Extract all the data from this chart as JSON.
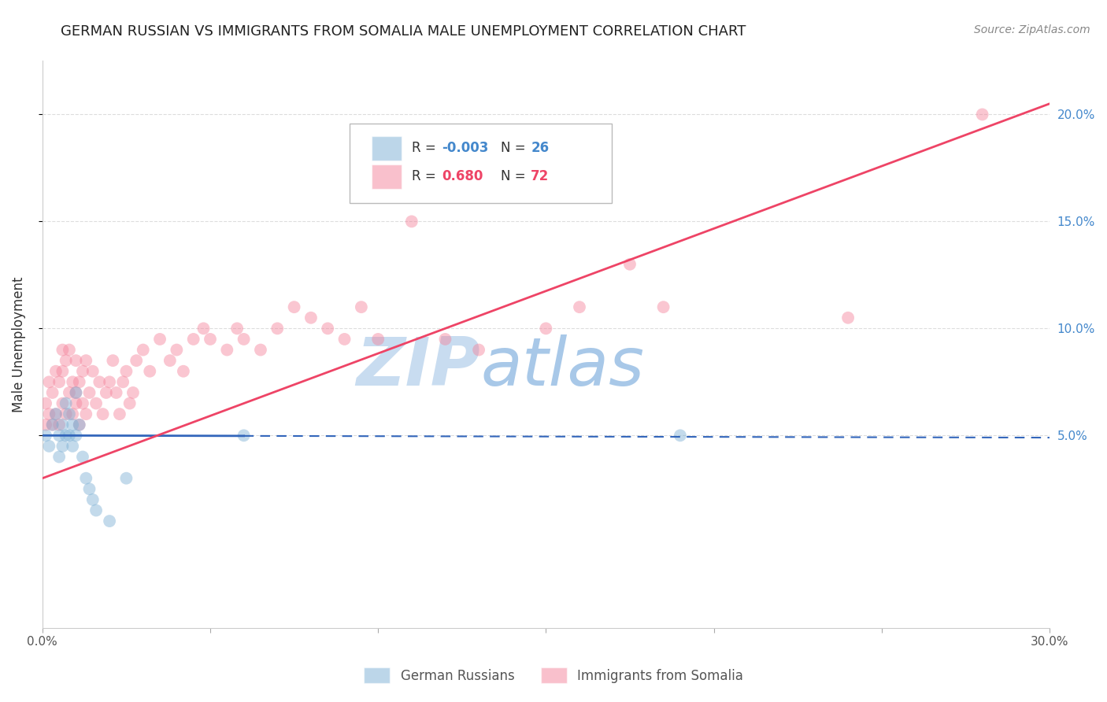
{
  "title": "GERMAN RUSSIAN VS IMMIGRANTS FROM SOMALIA MALE UNEMPLOYMENT CORRELATION CHART",
  "source": "Source: ZipAtlas.com",
  "ylabel": "Male Unemployment",
  "xlim": [
    0.0,
    0.3
  ],
  "ylim": [
    -0.04,
    0.225
  ],
  "right_yticks": [
    0.05,
    0.1,
    0.15,
    0.2
  ],
  "right_yticklabels": [
    "5.0%",
    "10.0%",
    "15.0%",
    "20.0%"
  ],
  "legend_r1": "R = -0.003",
  "legend_n1": "N = 26",
  "legend_r2": "R =  0.680",
  "legend_n2": "N = 72",
  "color_blue": "#7BAFD4",
  "color_pink": "#F4829A",
  "watermark_zip": "ZIP",
  "watermark_atlas": "atlas",
  "watermark_color": "#C8DCF0",
  "title_fontsize": 13,
  "source_fontsize": 10,
  "series1_label": "German Russians",
  "series2_label": "Immigrants from Somalia",
  "blue_scatter_x": [
    0.001,
    0.002,
    0.003,
    0.004,
    0.005,
    0.005,
    0.006,
    0.006,
    0.007,
    0.007,
    0.008,
    0.008,
    0.009,
    0.009,
    0.01,
    0.01,
    0.011,
    0.012,
    0.013,
    0.014,
    0.015,
    0.016,
    0.02,
    0.025,
    0.06,
    0.19
  ],
  "blue_scatter_y": [
    0.05,
    0.045,
    0.055,
    0.06,
    0.05,
    0.04,
    0.055,
    0.045,
    0.05,
    0.065,
    0.05,
    0.06,
    0.055,
    0.045,
    0.05,
    0.07,
    0.055,
    0.04,
    0.03,
    0.025,
    0.02,
    0.015,
    0.01,
    0.03,
    0.05,
    0.05
  ],
  "pink_scatter_x": [
    0.001,
    0.001,
    0.002,
    0.002,
    0.003,
    0.003,
    0.004,
    0.004,
    0.005,
    0.005,
    0.006,
    0.006,
    0.006,
    0.007,
    0.007,
    0.008,
    0.008,
    0.009,
    0.009,
    0.01,
    0.01,
    0.01,
    0.011,
    0.011,
    0.012,
    0.012,
    0.013,
    0.013,
    0.014,
    0.015,
    0.016,
    0.017,
    0.018,
    0.019,
    0.02,
    0.021,
    0.022,
    0.023,
    0.024,
    0.025,
    0.026,
    0.027,
    0.028,
    0.03,
    0.032,
    0.035,
    0.038,
    0.04,
    0.042,
    0.045,
    0.048,
    0.05,
    0.055,
    0.058,
    0.06,
    0.065,
    0.07,
    0.075,
    0.08,
    0.085,
    0.09,
    0.095,
    0.1,
    0.11,
    0.12,
    0.13,
    0.15,
    0.16,
    0.175,
    0.185,
    0.24,
    0.28
  ],
  "pink_scatter_y": [
    0.055,
    0.065,
    0.06,
    0.075,
    0.055,
    0.07,
    0.06,
    0.08,
    0.055,
    0.075,
    0.065,
    0.08,
    0.09,
    0.06,
    0.085,
    0.07,
    0.09,
    0.06,
    0.075,
    0.065,
    0.07,
    0.085,
    0.055,
    0.075,
    0.065,
    0.08,
    0.06,
    0.085,
    0.07,
    0.08,
    0.065,
    0.075,
    0.06,
    0.07,
    0.075,
    0.085,
    0.07,
    0.06,
    0.075,
    0.08,
    0.065,
    0.07,
    0.085,
    0.09,
    0.08,
    0.095,
    0.085,
    0.09,
    0.08,
    0.095,
    0.1,
    0.095,
    0.09,
    0.1,
    0.095,
    0.09,
    0.1,
    0.11,
    0.105,
    0.1,
    0.095,
    0.11,
    0.095,
    0.15,
    0.095,
    0.09,
    0.1,
    0.11,
    0.13,
    0.11,
    0.105,
    0.2
  ],
  "blue_line_x": [
    0.0,
    0.3
  ],
  "blue_line_y": [
    0.05,
    0.049
  ],
  "pink_line_x": [
    0.0,
    0.3
  ],
  "pink_line_y": [
    0.03,
    0.205
  ],
  "grid_color": "#DDDDDD",
  "background_color": "#FFFFFF"
}
